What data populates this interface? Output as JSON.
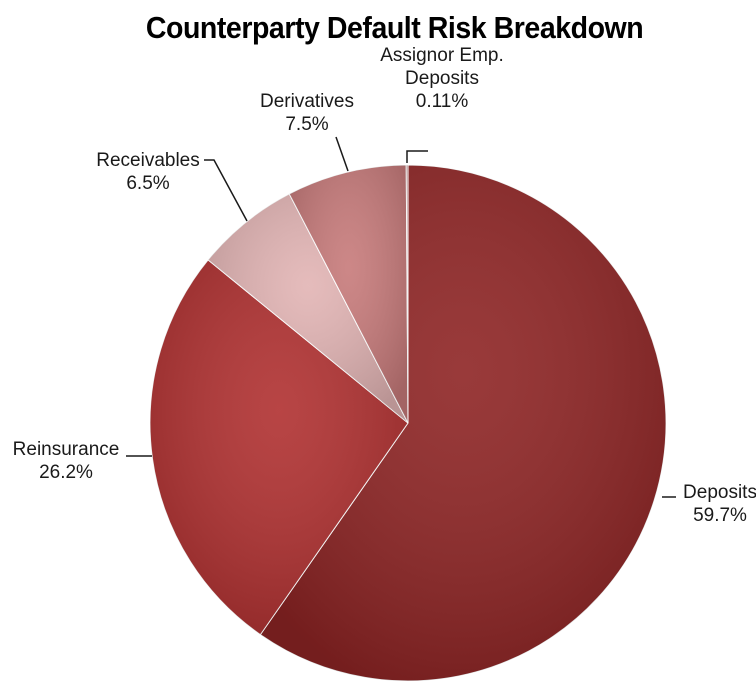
{
  "chart_data": {
    "type": "pie",
    "title": "Counterparty Default Risk Breakdown",
    "slices": [
      {
        "name": "Deposits",
        "value": 59.7,
        "value_label": "59.7%",
        "color": "#8e2424"
      },
      {
        "name": "Reinsurance",
        "value": 26.2,
        "value_label": "26.2%",
        "color": "#b03030"
      },
      {
        "name": "Receivables",
        "value": 6.5,
        "value_label": "6.5%",
        "color": "#e2b4b4"
      },
      {
        "name": "Derivatives",
        "value": 7.5,
        "value_label": "7.5%",
        "color": "#c77a7a"
      },
      {
        "name": "Assignor Emp. Deposits",
        "name_lines": [
          "Assignor Emp.",
          "Deposits"
        ],
        "value": 0.11,
        "value_label": "0.11%",
        "color": "#c98c8c"
      }
    ],
    "legend": "none",
    "start_angle": "12 o'clock",
    "direction": "clockwise"
  }
}
